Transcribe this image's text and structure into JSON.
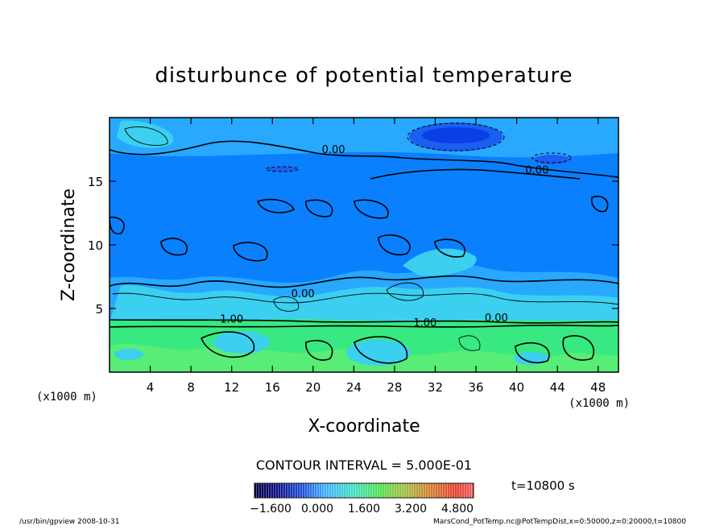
{
  "chart_data": {
    "type": "heatmap",
    "title": "disturbunce of potential temperature",
    "xlabel": "X-coordinate",
    "ylabel": "Z-coordinate",
    "x_unit_left": "(x1000 m)",
    "x_unit_right": "(x1000 m)",
    "xlim": [
      0,
      50
    ],
    "ylim": [
      0,
      20
    ],
    "x_ticks": [
      4,
      8,
      12,
      16,
      20,
      24,
      28,
      32,
      36,
      40,
      44,
      48
    ],
    "y_ticks": [
      5,
      10,
      15
    ],
    "contour_interval_text": "CONTOUR INTERVAL = 5.000E-01",
    "time_text": "t=10800 s",
    "colorbar_labels": [
      "−1.600",
      "0.000",
      "1.600",
      "3.200",
      "4.800"
    ],
    "colorbar_range": [
      -1.6,
      5.2
    ],
    "contour_labels": [
      {
        "text": "0.00",
        "x": 22,
        "z": 17.2
      },
      {
        "text": "0.00",
        "x": 42,
        "z": 15.6
      },
      {
        "text": "0.00",
        "x": 19,
        "z": 5.9
      },
      {
        "text": "0.00",
        "x": 38,
        "z": 4.0
      },
      {
        "text": "1.00",
        "x": 12,
        "z": 3.9
      },
      {
        "text": "1.00",
        "x": 31,
        "z": 3.6
      }
    ]
  },
  "footer": {
    "left": "/usr/bin/gpview   2008-10-31",
    "right": "MarsCond_PotTemp.nc@PotTempDist,x=0:50000,z=0:20000,t=10800"
  },
  "colors": {
    "background_blue": "#0a80ff",
    "low_blue": "#0a3fe6",
    "light_blue": "#28a8ff",
    "cyan": "#3bd0f0",
    "green": "#38e880",
    "light_green": "#6cf070"
  }
}
